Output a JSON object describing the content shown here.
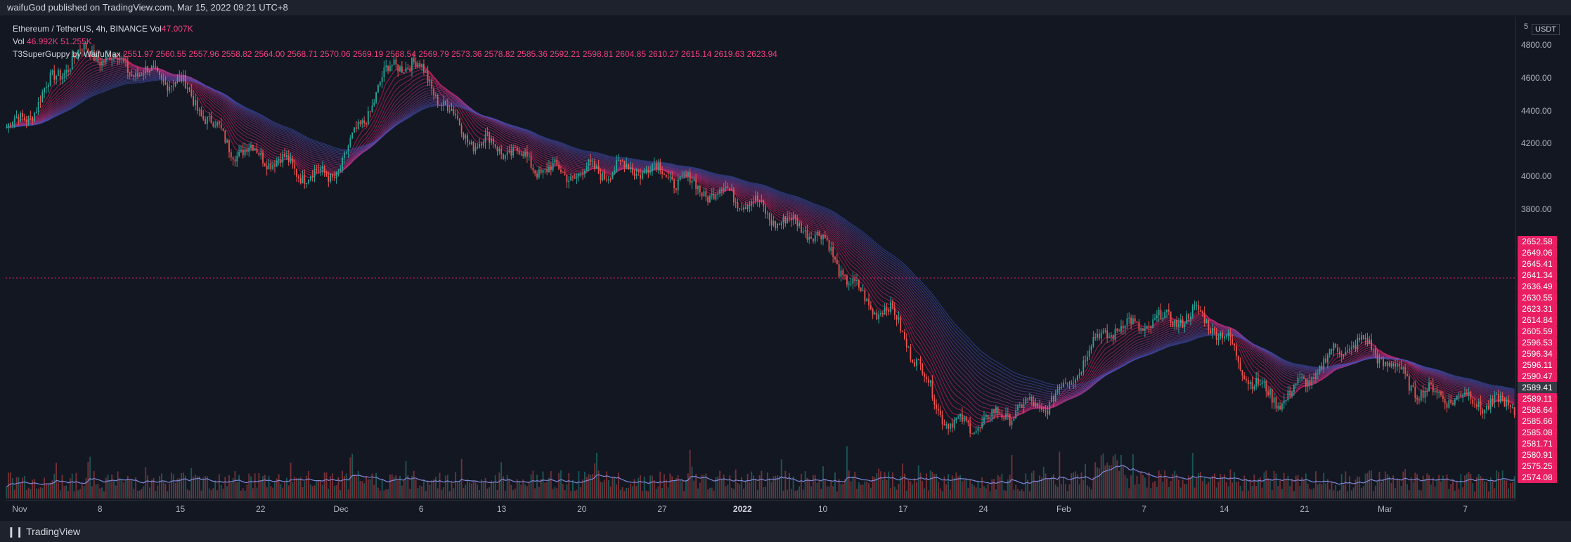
{
  "header": {
    "publisher": "waifuGod published on TradingView.com, Mar 15, 2022 09:21 UTC+8"
  },
  "legend": {
    "symbol": "Ethereum / TetherUS, 4h, BINANCE",
    "vol_label": "Vol",
    "symbol_vol": "47.007K",
    "vol_values": [
      "46.992K",
      "51.255K"
    ],
    "indicator": "T3SuperGuppy by WaifuMax",
    "indicator_values": [
      "2551.97",
      "2560.55",
      "2557.96",
      "2558.82",
      "2564.00",
      "2568.71",
      "2570.06",
      "2569.19",
      "2568.54",
      "2569.79",
      "2573.36",
      "2578.82",
      "2585.36",
      "2592.21",
      "2598.81",
      "2604.85",
      "2610.27",
      "2615.14",
      "2619.63",
      "2623.94"
    ]
  },
  "price_scale": {
    "currency": "USDT",
    "top_fragment": "5",
    "ticks": [
      "4800.00",
      "4600.00",
      "4400.00",
      "4200.00",
      "4000.00",
      "3800.00"
    ],
    "badges": [
      "2652.58",
      "2649.06",
      "2645.41",
      "2641.34",
      "2636.49",
      "2630.55",
      "2623.31",
      "2614.84",
      "2605.59",
      "2596.53",
      "2596.34",
      "2596.11",
      "2590.47",
      "2589.41",
      "2589.11",
      "2586.64",
      "2585.66",
      "2585.08",
      "2581.71",
      "2580.91",
      "2575.25",
      "2574.08"
    ],
    "current_price": "2589.41"
  },
  "time_scale": [
    "Nov",
    "8",
    "15",
    "22",
    "Dec",
    "6",
    "13",
    "20",
    "27",
    "2022",
    "10",
    "17",
    "24",
    "Feb",
    "7",
    "14",
    "21",
    "Mar",
    "7"
  ],
  "footer": {
    "brand": "TradingView"
  },
  "colors": {
    "up": "#26a69a",
    "down": "#ef5350",
    "pink": "#e91e63",
    "blue": "#3f51b5",
    "bg": "#131722"
  },
  "chart_data": {
    "type": "line",
    "title": "Ethereum / TetherUS, 4h, BINANCE",
    "x": [
      "Nov 1",
      "Nov 8",
      "Nov 15",
      "Nov 22",
      "Dec 1",
      "Dec 6",
      "Dec 13",
      "Dec 20",
      "Dec 27",
      "Jan 3",
      "Jan 10",
      "Jan 17",
      "Jan 24",
      "Feb 1",
      "Feb 7",
      "Feb 14",
      "Feb 21",
      "Mar 1",
      "Mar 7",
      "Mar 14"
    ],
    "series": [
      {
        "values": [
          4300,
          4750,
          4600,
          4150,
          4000,
          4700,
          4200,
          4020,
          4050,
          3900,
          3700,
          3200,
          2480,
          2600,
          3080,
          3150,
          2650,
          2980,
          2670,
          2600
        ]
      }
    ],
    "ylim": [
      2300,
      4950
    ],
    "ylabel": "",
    "xlabel": ""
  }
}
